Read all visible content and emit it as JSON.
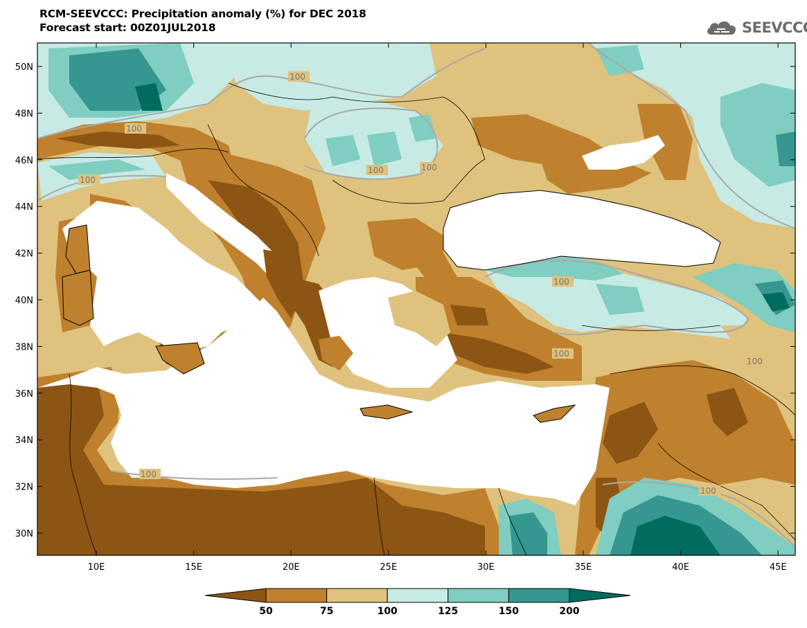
{
  "header": {
    "title_line1": "RCM-SEEVCCC: Precipitation anomaly (%) for DEC 2018",
    "title_line2": "Forecast start: 00Z01JUL2018"
  },
  "logo": {
    "text": "SEEVCCC",
    "icon": "cloud-logo-icon"
  },
  "map": {
    "lat_ticks": [
      "50N",
      "48N",
      "46N",
      "44N",
      "42N",
      "40N",
      "38N",
      "36N",
      "34N",
      "32N",
      "30N"
    ],
    "lon_ticks": [
      "10E",
      "15E",
      "20E",
      "25E",
      "30E",
      "35E",
      "40E",
      "45E"
    ],
    "contour_label": "100",
    "colors": {
      "lt50": "#8c5514",
      "c50_75": "#bf812d",
      "c75_100": "#dfc27d",
      "c100_125": "#c7eae5",
      "c125_150": "#80cdc1",
      "c150_200": "#35978f",
      "gt200": "#016c5e",
      "sea": "#ffffff"
    }
  },
  "colorbar": {
    "labels": [
      "50",
      "75",
      "100",
      "125",
      "150",
      "200"
    ],
    "colors": [
      "#8c5514",
      "#bf812d",
      "#dfc27d",
      "#c7eae5",
      "#80cdc1",
      "#35978f",
      "#016c5e"
    ]
  }
}
